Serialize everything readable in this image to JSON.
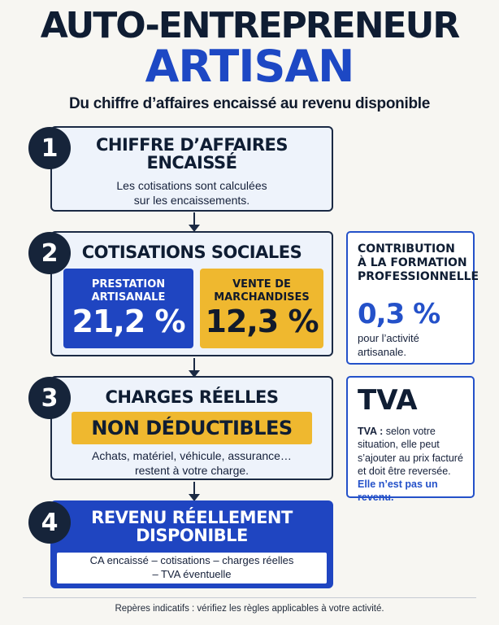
{
  "header": {
    "title_line1": "AUTO-ENTREPRENEUR",
    "title_line2": "ARTISAN",
    "subtitle": "Du chiffre d’affaires encaissé au revenu disponible"
  },
  "steps": [
    {
      "number": "1",
      "title_line1": "CHIFFRE D’AFFAIRES",
      "title_line2": "ENCAISSÉ",
      "text_line1": "Les cotisations sont calculées",
      "text_line2": "sur les encaissements."
    },
    {
      "number": "2",
      "title": "COTISATIONS SOCIALES",
      "tiles": [
        {
          "label_line1": "PRESTATION",
          "label_line2": "ARTISANALE",
          "value": "21,2 %"
        },
        {
          "label_line1": "VENTE DE",
          "label_line2": "MARCHANDISES",
          "value": "12,3 %"
        }
      ]
    },
    {
      "number": "3",
      "title": "CHARGES RÉELLES",
      "banner": "NON DÉDUCTIBLES",
      "text_line1": "Achats, matériel, véhicule, assurance…",
      "text_line2": "restent à votre charge."
    },
    {
      "number": "4",
      "title_line1": "REVENU RÉELLEMENT",
      "title_line2": "DISPONIBLE",
      "formula_line1": "CA encaissé – cotisations – charges réelles",
      "formula_line2": "– TVA éventuelle"
    }
  ],
  "side_cfp": {
    "title_line1": "CONTRIBUTION",
    "title_line2": "À LA FORMATION",
    "title_line3": "PROFESSIONNELLE",
    "value": "0,3 %",
    "note_line1": "pour l’activité",
    "note_line2": "artisanale."
  },
  "side_tva": {
    "title": "TVA",
    "label": "TVA :",
    "text_line1": " selon votre",
    "text_line2": "situation, elle peut",
    "text_line3": "s’ajouter au prix facturé",
    "text_line4": "et doit être reversée.",
    "emphasis": "Elle n’est pas un revenu."
  },
  "footer": {
    "text": "Repères indicatifs : vérifiez les règles applicables à votre activité."
  },
  "colors": {
    "navy": "#16243a",
    "blue": "#1d48c4",
    "blue_panel": "#1f45c1",
    "yellow": "#efb82f",
    "background": "#f7f6f2"
  }
}
